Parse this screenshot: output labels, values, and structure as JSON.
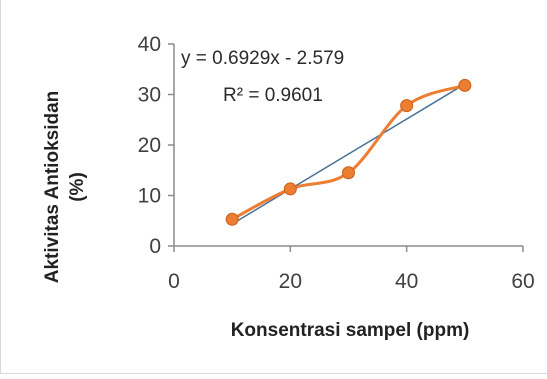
{
  "chart_data": {
    "type": "scatter",
    "title": "",
    "xlabel": "Konsentrasi sampel (ppm)",
    "ylabel": "Aktivitas Antioksidan (%)",
    "ylabel_lines": [
      "Aktivitas Antioksidan",
      "(%)"
    ],
    "xlim": [
      0,
      60
    ],
    "ylim": [
      0,
      40
    ],
    "x_ticks": [
      0,
      20,
      40,
      60
    ],
    "y_ticks": [
      0,
      10,
      20,
      30,
      40
    ],
    "grid": false,
    "legend": "none",
    "series": [
      {
        "x": [
          10,
          20,
          30,
          40,
          50
        ],
        "y": [
          5.3,
          11.3,
          14.5,
          27.8,
          31.8
        ],
        "line_style": "smoothed",
        "color": "#ED7D31",
        "marker": "circle"
      }
    ],
    "trendline": {
      "type": "linear",
      "slope": 0.6929,
      "intercept": -2.579,
      "x_range": [
        10,
        50
      ],
      "color": "#4A7296"
    },
    "annotations": {
      "equation": "y = 0.6929x - 2.579",
      "r_squared": "R² = 0.9601"
    }
  }
}
